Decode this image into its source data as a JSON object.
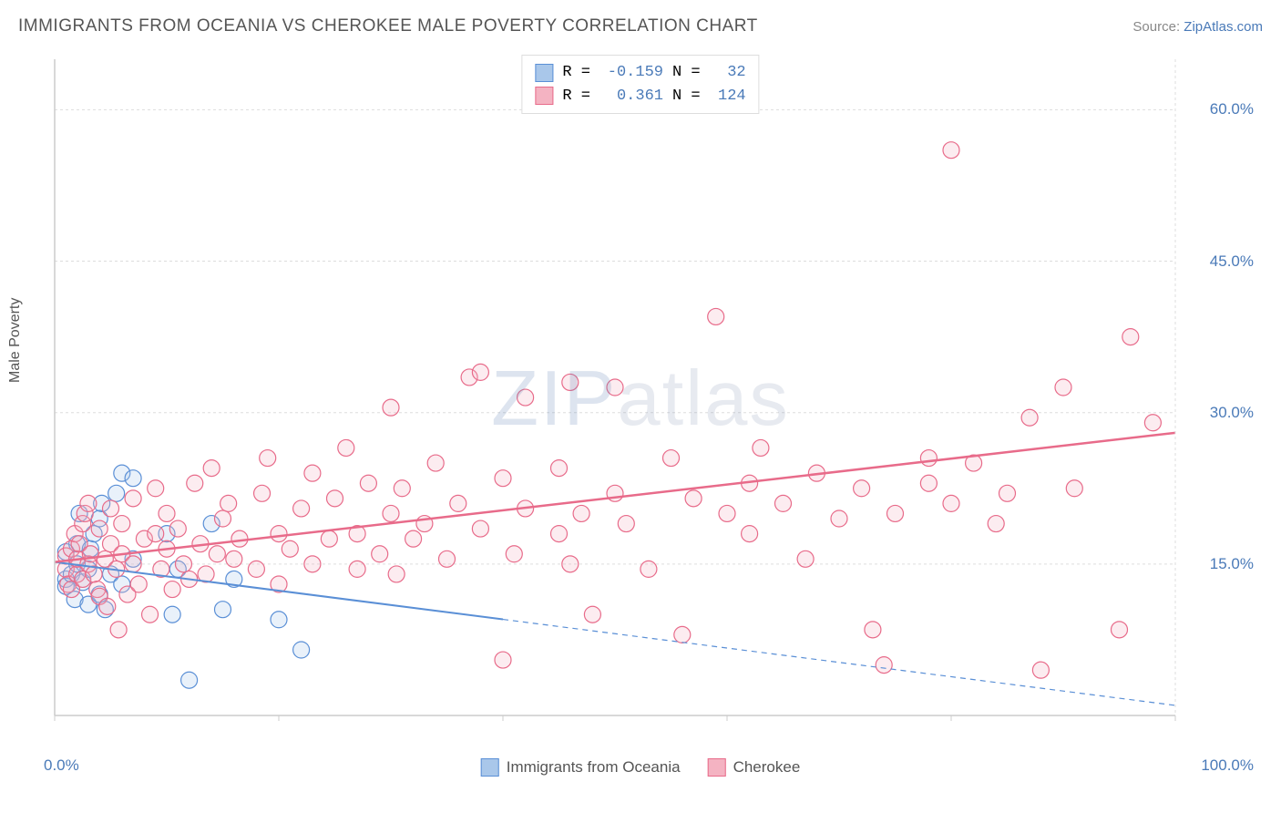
{
  "header": {
    "title": "IMMIGRANTS FROM OCEANIA VS CHEROKEE MALE POVERTY CORRELATION CHART",
    "source_prefix": "Source: ",
    "source_link": "ZipAtlas.com"
  },
  "y_axis": {
    "title": "Male Poverty"
  },
  "watermark": {
    "zip": "ZIP",
    "atlas": "atlas"
  },
  "chart": {
    "type": "scatter",
    "background_color": "#ffffff",
    "plot_border_color": "#cccccc",
    "grid_color": "#dddddd",
    "grid_dash": "3,3",
    "axis_label_color": "#4a7ab8",
    "text_color": "#555555",
    "x": {
      "min": 0,
      "max": 100,
      "ticks": [
        0,
        20,
        40,
        60,
        80,
        100
      ],
      "labels": {
        "0": "0.0%",
        "100": "100.0%"
      }
    },
    "y": {
      "min": 0,
      "max": 65,
      "ticks": [
        15,
        30,
        45,
        60
      ],
      "labels": {
        "15": "15.0%",
        "30": "30.0%",
        "45": "45.0%",
        "60": "60.0%"
      }
    },
    "marker_radius": 9,
    "marker_stroke_width": 1.2,
    "marker_fill_opacity": 0.25,
    "series": [
      {
        "id": "oceania",
        "label": "Immigrants from Oceania",
        "color": "#5a8fd6",
        "fill": "#a9c7ea",
        "R": "-0.159",
        "N": "32",
        "trend": {
          "y_at_x0": 15.2,
          "y_at_x100": 1.0,
          "solid_until_x": 40,
          "dash": "6,5",
          "width": 2
        },
        "points": [
          [
            1,
            13.5
          ],
          [
            1,
            12.8
          ],
          [
            1,
            16.2
          ],
          [
            1.5,
            14.0
          ],
          [
            1.8,
            11.5
          ],
          [
            2,
            15.0
          ],
          [
            2,
            17.0
          ],
          [
            2.2,
            20.0
          ],
          [
            2.5,
            13.2
          ],
          [
            3,
            14.5
          ],
          [
            3,
            11.0
          ],
          [
            3.2,
            16.5
          ],
          [
            3.5,
            18.0
          ],
          [
            4,
            12.0
          ],
          [
            4,
            19.5
          ],
          [
            4.2,
            21.0
          ],
          [
            4.5,
            10.5
          ],
          [
            5,
            14.0
          ],
          [
            5.5,
            22.0
          ],
          [
            6,
            13.0
          ],
          [
            6,
            24.0
          ],
          [
            7,
            15.5
          ],
          [
            7,
            23.5
          ],
          [
            10,
            18.0
          ],
          [
            10.5,
            10.0
          ],
          [
            11,
            14.5
          ],
          [
            12,
            3.5
          ],
          [
            14,
            19.0
          ],
          [
            15,
            10.5
          ],
          [
            16,
            13.5
          ],
          [
            20,
            9.5
          ],
          [
            22,
            6.5
          ]
        ]
      },
      {
        "id": "cherokee",
        "label": "Cherokee",
        "color": "#e86b8a",
        "fill": "#f4b3c2",
        "R": "0.361",
        "N": "124",
        "trend": {
          "y_at_x0": 15.2,
          "y_at_x100": 28.0,
          "solid_until_x": 100,
          "dash": "",
          "width": 2.5
        },
        "points": [
          [
            1,
            14.5
          ],
          [
            1,
            15.8
          ],
          [
            1.2,
            13.0
          ],
          [
            1.5,
            16.5
          ],
          [
            1.5,
            12.5
          ],
          [
            1.8,
            18.0
          ],
          [
            2,
            14.0
          ],
          [
            2,
            15.5
          ],
          [
            2.2,
            17.0
          ],
          [
            2.5,
            19.0
          ],
          [
            2.5,
            13.5
          ],
          [
            2.7,
            20.0
          ],
          [
            3,
            15.0
          ],
          [
            3,
            21.0
          ],
          [
            3.2,
            16.0
          ],
          [
            3.5,
            14.0
          ],
          [
            3.8,
            12.5
          ],
          [
            4,
            18.5
          ],
          [
            4,
            11.8
          ],
          [
            4.5,
            15.5
          ],
          [
            4.7,
            10.8
          ],
          [
            5,
            20.5
          ],
          [
            5,
            17.0
          ],
          [
            5.5,
            14.5
          ],
          [
            5.7,
            8.5
          ],
          [
            6,
            16.0
          ],
          [
            6,
            19.0
          ],
          [
            6.5,
            12.0
          ],
          [
            7,
            21.5
          ],
          [
            7,
            15.0
          ],
          [
            7.5,
            13.0
          ],
          [
            8,
            17.5
          ],
          [
            8.5,
            10.0
          ],
          [
            9,
            18.0
          ],
          [
            9,
            22.5
          ],
          [
            9.5,
            14.5
          ],
          [
            10,
            20.0
          ],
          [
            10,
            16.5
          ],
          [
            10.5,
            12.5
          ],
          [
            11,
            18.5
          ],
          [
            11.5,
            15.0
          ],
          [
            12,
            13.5
          ],
          [
            12.5,
            23.0
          ],
          [
            13,
            17.0
          ],
          [
            13.5,
            14.0
          ],
          [
            14,
            24.5
          ],
          [
            14.5,
            16.0
          ],
          [
            15,
            19.5
          ],
          [
            15.5,
            21.0
          ],
          [
            16,
            15.5
          ],
          [
            16.5,
            17.5
          ],
          [
            18,
            14.5
          ],
          [
            18.5,
            22.0
          ],
          [
            19,
            25.5
          ],
          [
            20,
            18.0
          ],
          [
            20,
            13.0
          ],
          [
            21,
            16.5
          ],
          [
            22,
            20.5
          ],
          [
            23,
            15.0
          ],
          [
            23,
            24.0
          ],
          [
            24.5,
            17.5
          ],
          [
            25,
            21.5
          ],
          [
            26,
            26.5
          ],
          [
            27,
            14.5
          ],
          [
            27,
            18.0
          ],
          [
            28,
            23.0
          ],
          [
            29,
            16.0
          ],
          [
            30,
            30.5
          ],
          [
            30,
            20.0
          ],
          [
            30.5,
            14.0
          ],
          [
            31,
            22.5
          ],
          [
            32,
            17.5
          ],
          [
            33,
            19.0
          ],
          [
            34,
            25.0
          ],
          [
            35,
            15.5
          ],
          [
            36,
            21.0
          ],
          [
            37,
            33.5
          ],
          [
            38,
            18.5
          ],
          [
            38,
            34.0
          ],
          [
            40,
            23.5
          ],
          [
            40,
            5.5
          ],
          [
            41,
            16.0
          ],
          [
            42,
            20.5
          ],
          [
            42,
            31.5
          ],
          [
            45,
            18.0
          ],
          [
            45,
            24.5
          ],
          [
            46,
            33.0
          ],
          [
            46,
            15.0
          ],
          [
            47,
            20.0
          ],
          [
            48,
            10.0
          ],
          [
            50,
            22.0
          ],
          [
            50,
            32.5
          ],
          [
            51,
            19.0
          ],
          [
            53,
            14.5
          ],
          [
            55,
            25.5
          ],
          [
            56,
            8.0
          ],
          [
            57,
            21.5
          ],
          [
            59,
            39.5
          ],
          [
            60,
            20.0
          ],
          [
            62,
            23.0
          ],
          [
            62,
            18.0
          ],
          [
            63,
            26.5
          ],
          [
            65,
            21.0
          ],
          [
            67,
            15.5
          ],
          [
            68,
            24.0
          ],
          [
            70,
            19.5
          ],
          [
            72,
            22.5
          ],
          [
            73,
            8.5
          ],
          [
            74,
            5.0
          ],
          [
            75,
            20.0
          ],
          [
            78,
            25.5
          ],
          [
            78,
            23.0
          ],
          [
            80,
            56.0
          ],
          [
            80,
            21.0
          ],
          [
            82,
            25.0
          ],
          [
            84,
            19.0
          ],
          [
            85,
            22.0
          ],
          [
            87,
            29.5
          ],
          [
            88,
            4.5
          ],
          [
            90,
            32.5
          ],
          [
            91,
            22.5
          ],
          [
            95,
            8.5
          ],
          [
            96,
            37.5
          ],
          [
            98,
            29.0
          ]
        ]
      }
    ]
  },
  "legend_top": {
    "R_label": "R =",
    "N_label": "N ="
  },
  "legend_bottom": {}
}
